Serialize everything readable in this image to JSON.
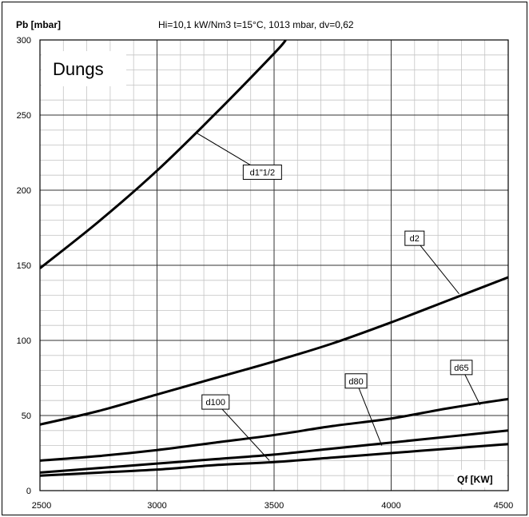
{
  "header": {
    "ylabel": "Pb [mbar]",
    "conditions": "Hi=10,1 kW/Nm3  t=15°C, 1013 mbar, dv=0,62"
  },
  "brand": "Dungs",
  "xlabel": "Qf [KW]",
  "chart_data": {
    "type": "line",
    "title": "Hi=10,1 kW/Nm3  t=15°C, 1013 mbar, dv=0,62",
    "xlabel": "Qf [KW]",
    "ylabel": "Pb [mbar]",
    "xlim": [
      2500,
      4500
    ],
    "ylim": [
      0,
      300
    ],
    "x_ticks": [
      2500,
      3000,
      3500,
      4000,
      4500
    ],
    "y_ticks": [
      0,
      50,
      100,
      150,
      200,
      250,
      300
    ],
    "grid": true,
    "series": [
      {
        "name": "d1\"1/2",
        "x": [
          2500,
          2750,
          3000,
          3250,
          3500,
          3550
        ],
        "y": [
          148,
          179,
          213,
          251,
          291,
          300
        ]
      },
      {
        "name": "d2",
        "x": [
          2500,
          2750,
          3000,
          3250,
          3500,
          3750,
          4000,
          4250,
          4500
        ],
        "y": [
          44,
          53,
          64,
          75,
          86,
          98,
          112,
          127,
          142
        ]
      },
      {
        "name": "d65",
        "x": [
          2500,
          2750,
          3000,
          3250,
          3500,
          3750,
          4000,
          4250,
          4500
        ],
        "y": [
          20,
          23,
          27,
          32,
          37,
          43,
          48,
          55,
          61
        ]
      },
      {
        "name": "d80",
        "x": [
          2500,
          2750,
          3000,
          3250,
          3500,
          3750,
          4000,
          4250,
          4500
        ],
        "y": [
          12,
          15,
          18,
          21,
          24,
          28,
          32,
          36,
          40
        ]
      },
      {
        "name": "d100",
        "x": [
          2500,
          2750,
          3000,
          3250,
          3500,
          3750,
          4000,
          4250,
          4500
        ],
        "y": [
          10,
          12,
          14,
          17,
          19,
          22,
          25,
          28,
          31
        ]
      }
    ]
  }
}
